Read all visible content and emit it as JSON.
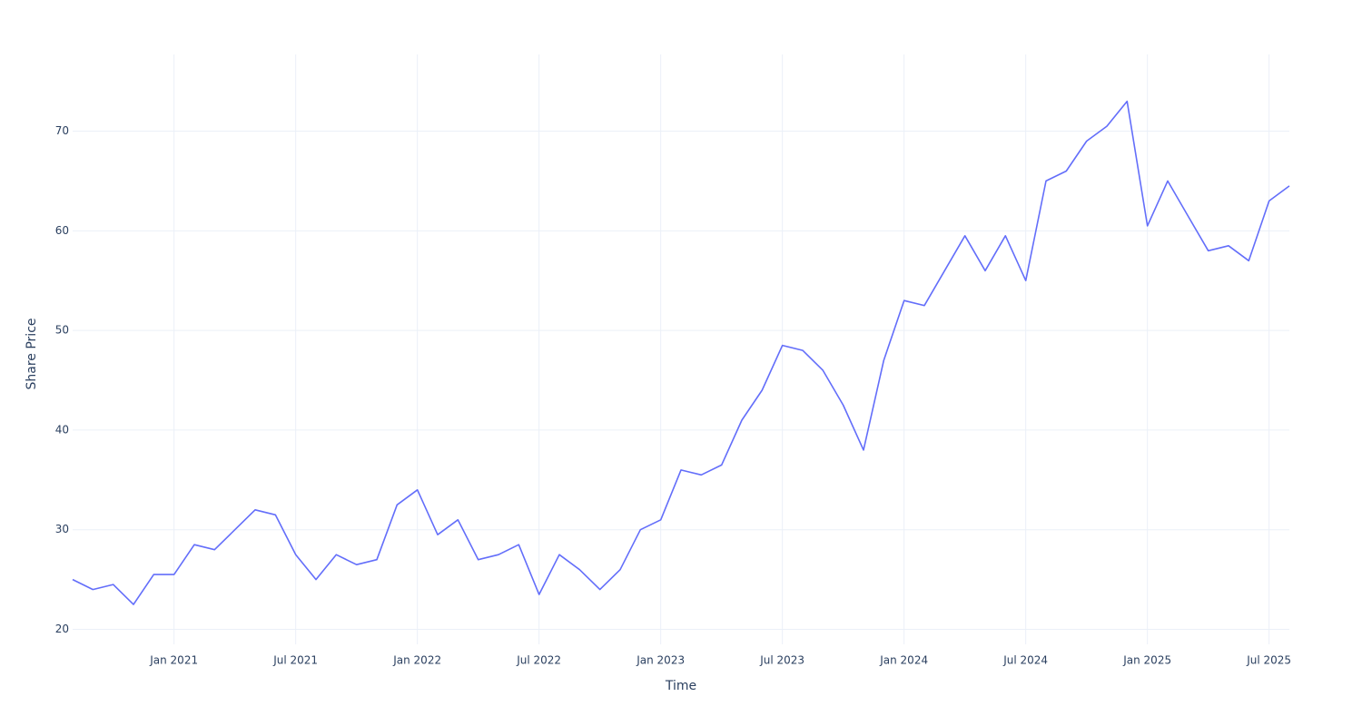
{
  "chart_data": {
    "type": "line",
    "x_label": "Time",
    "y_label": "Share Price",
    "x": [
      "2020-08",
      "2020-09",
      "2020-10",
      "2020-11",
      "2020-12",
      "2021-01",
      "2021-02",
      "2021-03",
      "2021-04",
      "2021-05",
      "2021-06",
      "2021-07",
      "2021-08",
      "2021-09",
      "2021-10",
      "2021-11",
      "2021-12",
      "2022-01",
      "2022-02",
      "2022-03",
      "2022-04",
      "2022-05",
      "2022-06",
      "2022-07",
      "2022-08",
      "2022-09",
      "2022-10",
      "2022-11",
      "2022-12",
      "2023-01",
      "2023-02",
      "2023-03",
      "2023-04",
      "2023-05",
      "2023-06",
      "2023-07",
      "2023-08",
      "2023-09",
      "2023-10",
      "2023-11",
      "2023-12",
      "2024-01",
      "2024-02",
      "2024-03",
      "2024-04",
      "2024-05",
      "2024-06",
      "2024-07",
      "2024-08",
      "2024-09",
      "2024-10",
      "2024-11",
      "2024-12",
      "2025-01",
      "2025-02",
      "2025-03",
      "2025-04",
      "2025-05",
      "2025-06",
      "2025-07",
      "2025-08"
    ],
    "series": [
      {
        "color": "#636efa",
        "values": [
          25,
          24,
          24.5,
          22.5,
          25.5,
          25.5,
          28.5,
          28,
          30,
          32,
          31.5,
          27.5,
          25,
          27.5,
          26.5,
          27,
          32.5,
          34,
          29.5,
          31,
          27,
          27.5,
          28.5,
          23.5,
          27.5,
          26,
          24,
          26,
          30,
          31,
          36,
          35.5,
          36.5,
          41,
          44,
          48.5,
          48,
          46,
          42.5,
          38,
          47,
          53,
          52.5,
          56,
          59.5,
          56,
          59.5,
          55,
          65,
          66,
          69,
          70.5,
          73,
          60.5,
          65,
          61.5,
          58,
          58.5,
          57,
          63,
          64.5
        ]
      }
    ],
    "xlim": [
      "2020-08",
      "2025-08"
    ],
    "xticks": [
      {
        "value": "2021-01",
        "label": "Jan 2021"
      },
      {
        "value": "2021-07",
        "label": "Jul 2021"
      },
      {
        "value": "2022-01",
        "label": "Jan 2022"
      },
      {
        "value": "2022-07",
        "label": "Jul 2022"
      },
      {
        "value": "2023-01",
        "label": "Jan 2023"
      },
      {
        "value": "2023-07",
        "label": "Jul 2023"
      },
      {
        "value": "2024-01",
        "label": "Jan 2024"
      },
      {
        "value": "2024-07",
        "label": "Jul 2024"
      },
      {
        "value": "2025-01",
        "label": "Jan 2025"
      },
      {
        "value": "2025-07",
        "label": "Jul 2025"
      }
    ],
    "ylim": [
      18.5,
      77.7
    ],
    "yticks": [
      20,
      30,
      40,
      50,
      60,
      70
    ],
    "grid": true
  }
}
